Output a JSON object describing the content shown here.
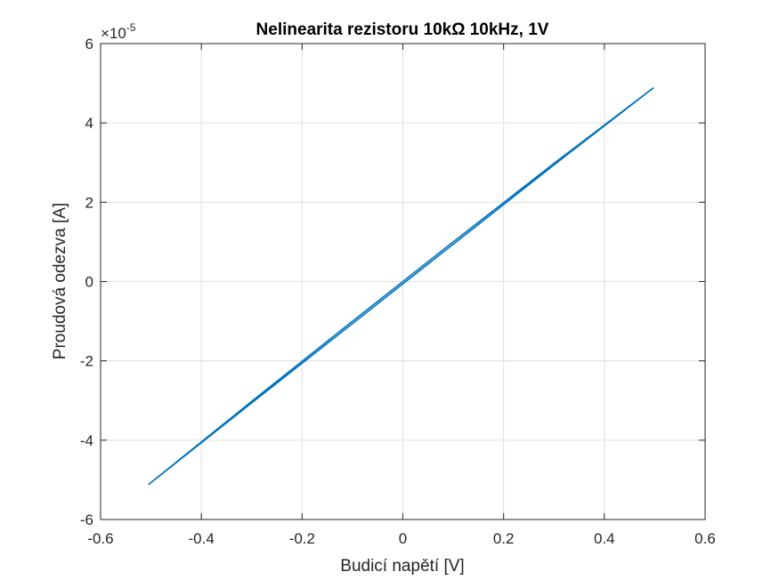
{
  "chart_data": {
    "type": "line",
    "title": "Nelinearita rezistoru 10kΩ 10kHz, 1V",
    "xlabel": "Budicí napětí [V]",
    "ylabel": "Proudová odezva [A]",
    "xlim": [
      -0.6,
      0.6
    ],
    "ylim": [
      -6,
      6
    ],
    "x_ticks": [
      -0.6,
      -0.4,
      -0.2,
      0,
      0.2,
      0.4,
      0.6
    ],
    "x_tick_labels": [
      "-0.6",
      "-0.4",
      "-0.2",
      "0",
      "0.2",
      "0.4",
      "0.6"
    ],
    "y_ticks": [
      -6,
      -4,
      -2,
      0,
      2,
      4,
      6
    ],
    "y_tick_labels": [
      "-6",
      "-4",
      "-2",
      "0",
      "2",
      "4",
      "6"
    ],
    "y_exponent_base": "×10",
    "y_exponent_power": "-5",
    "grid": true,
    "series": [
      {
        "name": "Proudová odezva",
        "color": "#0072BD",
        "x": [
          -0.505,
          -0.3,
          -0.1,
          0,
          0.1,
          0.3,
          0.497,
          0.3,
          0.1,
          0,
          -0.1,
          -0.3,
          -0.505
        ],
        "y": [
          -5.12,
          -3.06,
          -1.06,
          -0.06,
          0.94,
          2.94,
          4.88,
          2.98,
          1.0,
          0.0,
          -1.0,
          -3.02,
          -5.12
        ]
      }
    ]
  }
}
